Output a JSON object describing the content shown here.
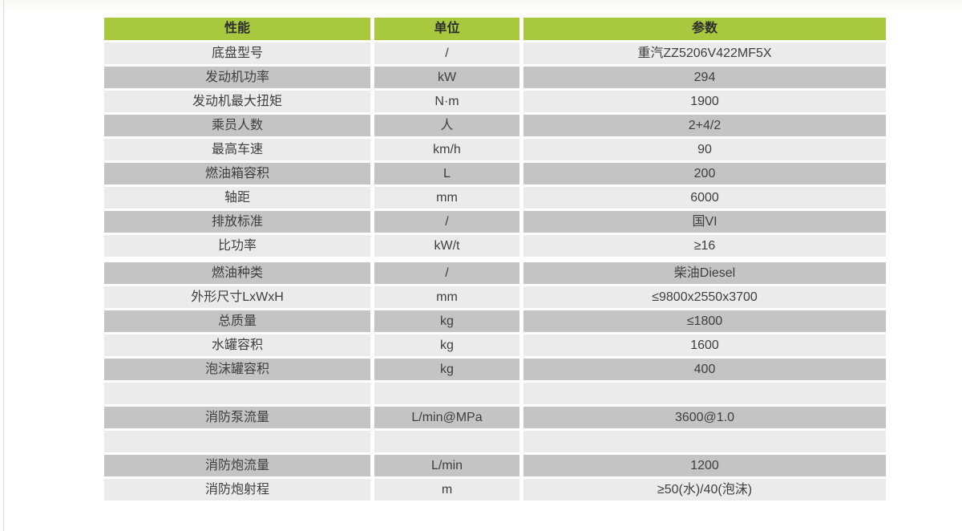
{
  "table": {
    "colors": {
      "header_bg": "#a8c93e",
      "row_light": "#ebebeb",
      "row_dark": "#c4c4c4",
      "header_text": "#2d2d2d",
      "body_text": "#3e3e3e"
    },
    "columns": [
      {
        "label": "性能"
      },
      {
        "label": "单位"
      },
      {
        "label": "参数"
      }
    ],
    "rows": [
      {
        "name": "底盘型号",
        "unit": "/",
        "value": "重汽ZZ5206V422MF5X",
        "shade": "light"
      },
      {
        "name": "发动机功率",
        "unit": "kW",
        "value": "294",
        "shade": "dark"
      },
      {
        "name": "发动机最大扭矩",
        "unit": "N·m",
        "value": "1900",
        "shade": "light"
      },
      {
        "name": "乘员人数",
        "unit": "人",
        "value": "2+4/2",
        "shade": "dark"
      },
      {
        "name": "最高车速",
        "unit": "km/h",
        "value": "90",
        "shade": "light"
      },
      {
        "name": "燃油箱容积",
        "unit": "L",
        "value": "200",
        "shade": "dark"
      },
      {
        "name": "轴距",
        "unit": "mm",
        "value": "6000",
        "shade": "light"
      },
      {
        "name": "排放标准",
        "unit": "/",
        "value": "国VI",
        "shade": "dark"
      },
      {
        "name": "比功率",
        "unit": "kW/t",
        "value": "≥16",
        "shade": "light"
      },
      {
        "name": "燃油种类",
        "unit": "/",
        "value": "柴油Diesel",
        "shade": "dark",
        "group_gap": true
      },
      {
        "name": "外形尺寸LxWxH",
        "unit": "mm",
        "value": "≤9800x2550x3700",
        "shade": "light"
      },
      {
        "name": "总质量",
        "unit": "kg",
        "value": "≤1800",
        "shade": "dark"
      },
      {
        "name": "水罐容积",
        "unit": "kg",
        "value": "1600",
        "shade": "light"
      },
      {
        "name": "泡沫罐容积",
        "unit": "kg",
        "value": "400",
        "shade": "dark"
      },
      {
        "name": "",
        "unit": "",
        "value": "",
        "shade": "light",
        "empty": true
      },
      {
        "name": "消防泵流量",
        "unit": "L/min@MPa",
        "value": "3600@1.0",
        "shade": "dark"
      },
      {
        "name": "",
        "unit": "",
        "value": "",
        "shade": "light",
        "empty": true
      },
      {
        "name": "消防炮流量",
        "unit": "L/min",
        "value": "1200",
        "shade": "dark"
      },
      {
        "name": "消防炮射程",
        "unit": "m",
        "value": "≥50(水)/40(泡沫)",
        "shade": "light"
      }
    ]
  }
}
